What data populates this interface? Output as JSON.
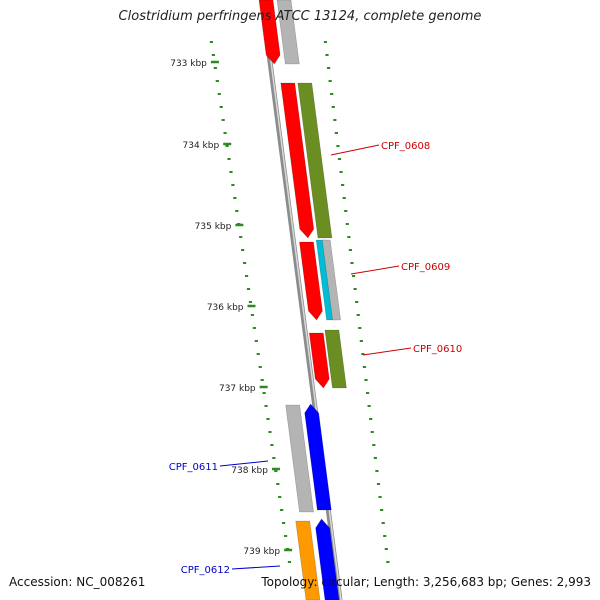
{
  "map": {
    "title": "Clostridium perfringens ATCC 13124, complete genome",
    "accession": "Accession: NC_008261",
    "summary": "Topology: circular; Length: 3,256,683 bp; Genes: 2,993"
  },
  "ruler": {
    "ticks": [
      "733 kbp",
      "734 kbp",
      "735 kbp",
      "736 kbp",
      "737 kbp",
      "738 kbp",
      "739 kbp"
    ]
  },
  "gene_labels": [
    "CPF_0608",
    "CPF_0609",
    "CPF_0610",
    "CPF_0611",
    "CPF_0612"
  ],
  "colors": {
    "backbone": "#8c8c8c",
    "tick": "#2e8b22",
    "cds_forward": "#ff0000",
    "cds_reverse": "#0000ff",
    "gray_gene": "#b4b4b4",
    "olive_gene": "#6b8e23",
    "cyan_gene": "#00bcd4",
    "orange_gene": "#ff9900",
    "label_red": "#cc0000",
    "label_blue": "#0000cc"
  }
}
